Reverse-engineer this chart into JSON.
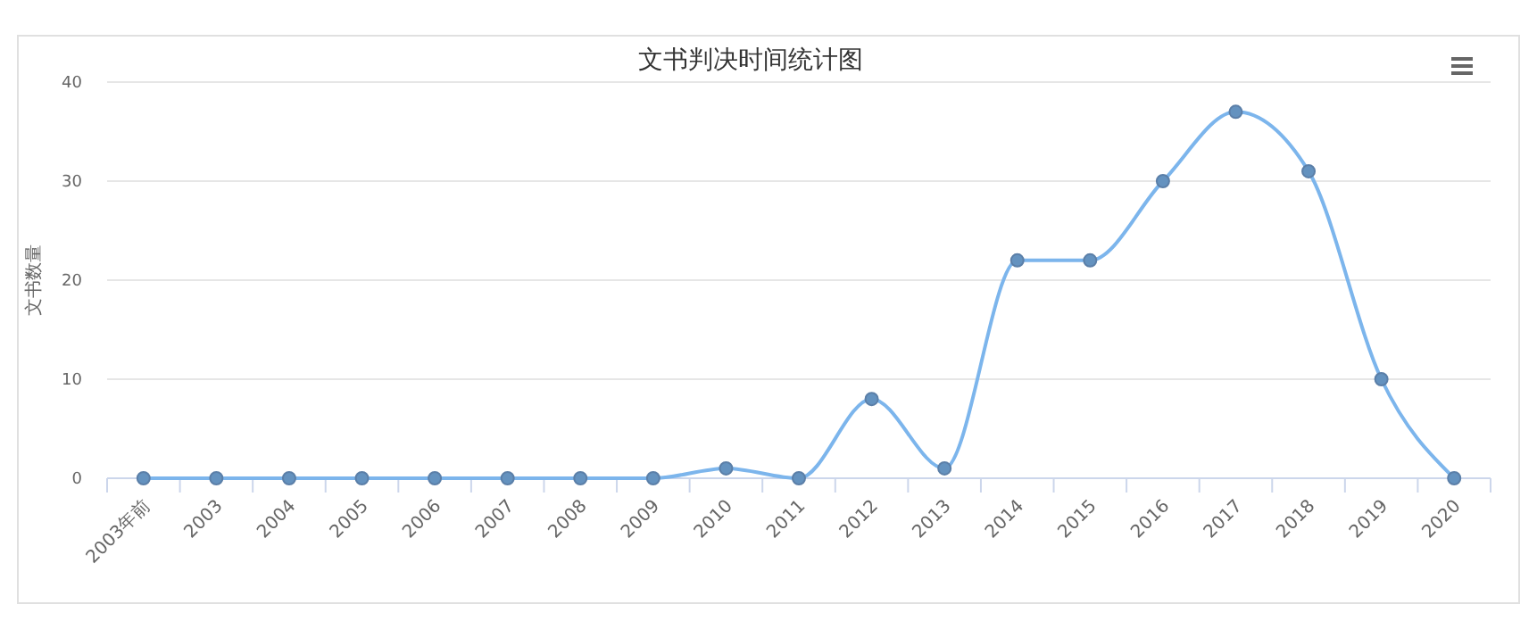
{
  "chart_data": {
    "type": "line",
    "title": "文书判决时间统计图",
    "ylabel": "文书数量",
    "categories": [
      "2003年前",
      "2003",
      "2004",
      "2005",
      "2006",
      "2007",
      "2008",
      "2009",
      "2010",
      "2011",
      "2012",
      "2013",
      "2014",
      "2015",
      "2016",
      "2017",
      "2018",
      "2019",
      "2020"
    ],
    "series": [
      {
        "color": "#7cb5ec",
        "values": [
          0,
          0,
          0,
          0,
          0,
          0,
          0,
          0,
          1,
          0,
          8,
          1,
          22,
          22,
          30,
          37,
          31,
          10,
          0
        ]
      }
    ],
    "ylim": [
      0,
      40
    ],
    "yticks": [
      0,
      10,
      20,
      30,
      40
    ],
    "grid": "y",
    "marker": "circle",
    "line_style": "solid"
  }
}
